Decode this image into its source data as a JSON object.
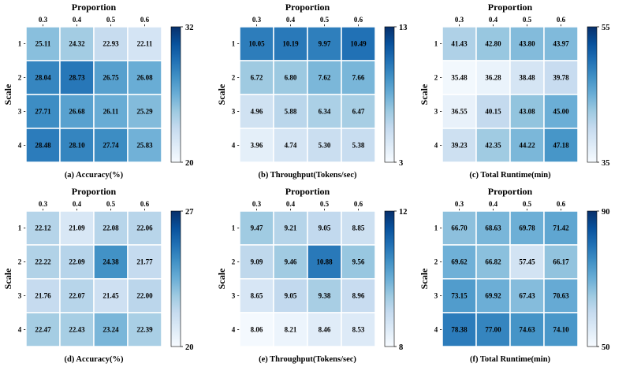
{
  "chart_data": [
    {
      "type": "heatmap",
      "caption": "(a) Accuracy(%)",
      "xlabel": "Proportion",
      "ylabel": "Scale",
      "x_categories": [
        "0.3",
        "0.4",
        "0.5",
        "0.6"
      ],
      "y_categories": [
        "1",
        "2",
        "3",
        "4"
      ],
      "values": [
        [
          25.11,
          24.32,
          22.93,
          22.11
        ],
        [
          28.04,
          28.73,
          26.75,
          26.08
        ],
        [
          27.71,
          26.68,
          26.11,
          25.29
        ],
        [
          28.48,
          28.1,
          27.74,
          25.83
        ]
      ],
      "colorbar": {
        "min": 20,
        "max": 32,
        "ticks": [
          "32",
          "20"
        ]
      },
      "colormap": "Blues"
    },
    {
      "type": "heatmap",
      "caption": "(b) Throughput(Tokens/sec)",
      "xlabel": "Proportion",
      "ylabel": "Scale",
      "x_categories": [
        "0.3",
        "0.4",
        "0.5",
        "0.6"
      ],
      "y_categories": [
        "1",
        "2",
        "3",
        "4"
      ],
      "values": [
        [
          10.05,
          10.19,
          9.97,
          10.49
        ],
        [
          6.72,
          6.8,
          7.62,
          7.66
        ],
        [
          4.96,
          5.88,
          6.34,
          6.47
        ],
        [
          3.96,
          4.74,
          5.3,
          5.38
        ]
      ],
      "colorbar": {
        "min": 3,
        "max": 13,
        "ticks": [
          "13",
          "3"
        ]
      },
      "colormap": "Blues"
    },
    {
      "type": "heatmap",
      "caption": "(c) Total Runtime(min)",
      "xlabel": "Proportion",
      "ylabel": "Scale",
      "x_categories": [
        "0.3",
        "0.4",
        "0.5",
        "0.6"
      ],
      "y_categories": [
        "1",
        "2",
        "3",
        "4"
      ],
      "values": [
        [
          41.43,
          42.8,
          43.8,
          43.97
        ],
        [
          35.48,
          36.28,
          38.48,
          39.78
        ],
        [
          36.55,
          40.15,
          43.08,
          45.0
        ],
        [
          39.23,
          42.35,
          44.22,
          47.18
        ]
      ],
      "colorbar": {
        "min": 35,
        "max": 55,
        "ticks": [
          "55",
          "35"
        ]
      },
      "colormap": "Blues"
    },
    {
      "type": "heatmap",
      "caption": "(d) Accuracy(%)",
      "xlabel": "Proportion",
      "ylabel": "Scale",
      "x_categories": [
        "0.3",
        "0.4",
        "0.5",
        "0.6"
      ],
      "y_categories": [
        "1",
        "2",
        "3",
        "4"
      ],
      "values": [
        [
          22.12,
          21.09,
          22.08,
          22.06
        ],
        [
          22.22,
          22.09,
          24.38,
          21.77
        ],
        [
          21.76,
          22.07,
          21.45,
          22.0
        ],
        [
          22.47,
          22.43,
          23.24,
          22.39
        ]
      ],
      "colorbar": {
        "min": 20,
        "max": 27,
        "ticks": [
          "27",
          "20"
        ]
      },
      "colormap": "Blues"
    },
    {
      "type": "heatmap",
      "caption": "(e) Throughput(Tokens/sec)",
      "xlabel": "Proportion",
      "ylabel": "Scale",
      "x_categories": [
        "0.3",
        "0.4",
        "0.5",
        "0.6"
      ],
      "y_categories": [
        "1",
        "2",
        "3",
        "4"
      ],
      "values": [
        [
          9.47,
          9.21,
          9.05,
          8.85
        ],
        [
          9.09,
          9.46,
          10.88,
          9.56
        ],
        [
          8.65,
          9.05,
          9.38,
          8.96
        ],
        [
          8.06,
          8.21,
          8.46,
          8.53
        ]
      ],
      "colorbar": {
        "min": 8,
        "max": 12,
        "ticks": [
          "12",
          "8"
        ]
      },
      "colormap": "Blues"
    },
    {
      "type": "heatmap",
      "caption": "(f) Total Runtime(min)",
      "xlabel": "Proportion",
      "ylabel": "Scale",
      "x_categories": [
        "0.3",
        "0.4",
        "0.5",
        "0.6"
      ],
      "y_categories": [
        "1",
        "2",
        "3",
        "4"
      ],
      "values": [
        [
          66.7,
          68.63,
          69.78,
          71.42
        ],
        [
          69.62,
          66.82,
          57.45,
          66.17
        ],
        [
          73.15,
          69.92,
          67.43,
          70.63
        ],
        [
          78.38,
          77.0,
          74.63,
          74.1
        ]
      ],
      "colorbar": {
        "min": 50,
        "max": 90,
        "ticks": [
          "90",
          "50"
        ]
      },
      "colormap": "Blues"
    }
  ]
}
